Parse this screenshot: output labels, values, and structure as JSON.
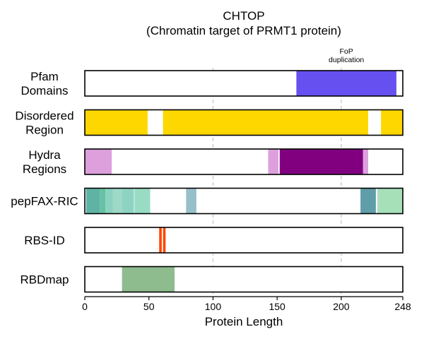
{
  "chart_data": {
    "type": "bar",
    "title_lines": [
      "CHTOP",
      "(Chromatin target of PRMT1 protein)"
    ],
    "xlabel": "Protein Length",
    "xlim": [
      0,
      248
    ],
    "xticks": [
      0,
      50,
      100,
      150,
      200,
      248
    ],
    "gridlines": [
      100,
      200
    ],
    "grid": "dashed vertical at 100 and 200",
    "tracks": [
      {
        "label_lines": [
          "Pfam",
          "Domains"
        ],
        "segments": [
          {
            "start": 165,
            "end": 243,
            "color": "#6650F0"
          }
        ]
      },
      {
        "label_lines": [
          "Disordered",
          "Region"
        ],
        "segments": [
          {
            "start": 0,
            "end": 49,
            "color": "#FFD700"
          },
          {
            "start": 61,
            "end": 221,
            "color": "#FFD700"
          },
          {
            "start": 231,
            "end": 248,
            "color": "#FFD700"
          }
        ]
      },
      {
        "label_lines": [
          "Hydra",
          "Regions"
        ],
        "segments": [
          {
            "start": 0,
            "end": 21,
            "color": "#DDA0DD"
          },
          {
            "start": 143,
            "end": 151,
            "color": "#DDA0DD"
          },
          {
            "start": 152,
            "end": 217,
            "color": "#800080"
          },
          {
            "start": 217,
            "end": 221,
            "color": "#DDA0DD"
          }
        ]
      },
      {
        "label_lines": [
          "pepFAX-RIC"
        ],
        "segments": [
          {
            "start": 1,
            "end": 12,
            "color": "#5FB3A5"
          },
          {
            "start": 12,
            "end": 16,
            "color": "#66C2A5"
          },
          {
            "start": 16,
            "end": 22,
            "color": "#8BD3C0"
          },
          {
            "start": 22,
            "end": 29,
            "color": "#9ED8C6"
          },
          {
            "start": 29,
            "end": 38,
            "color": "#8ED3C2"
          },
          {
            "start": 38,
            "end": 39,
            "color": "#B8E5D8"
          },
          {
            "start": 39,
            "end": 51,
            "color": "#98DCC4"
          },
          {
            "start": 79,
            "end": 87,
            "color": "#97BFC9"
          },
          {
            "start": 215,
            "end": 227,
            "color": "#5F9EA8"
          },
          {
            "start": 228,
            "end": 229,
            "color": "#B5DCD0"
          },
          {
            "start": 229,
            "end": 248,
            "color": "#A5E0B9"
          }
        ]
      },
      {
        "label_lines": [
          "RBS-ID"
        ],
        "segments": [
          {
            "start": 58,
            "end": 60,
            "color": "#FF4500"
          },
          {
            "start": 61,
            "end": 63,
            "color": "#FF4500"
          }
        ]
      },
      {
        "label_lines": [
          "RBDmap"
        ],
        "segments": [
          {
            "start": 29,
            "end": 70,
            "color": "#8FBC8F"
          }
        ]
      }
    ],
    "annotations": [
      {
        "lines": [
          "FoP",
          "duplication"
        ],
        "x": 204,
        "track": 0
      }
    ]
  }
}
